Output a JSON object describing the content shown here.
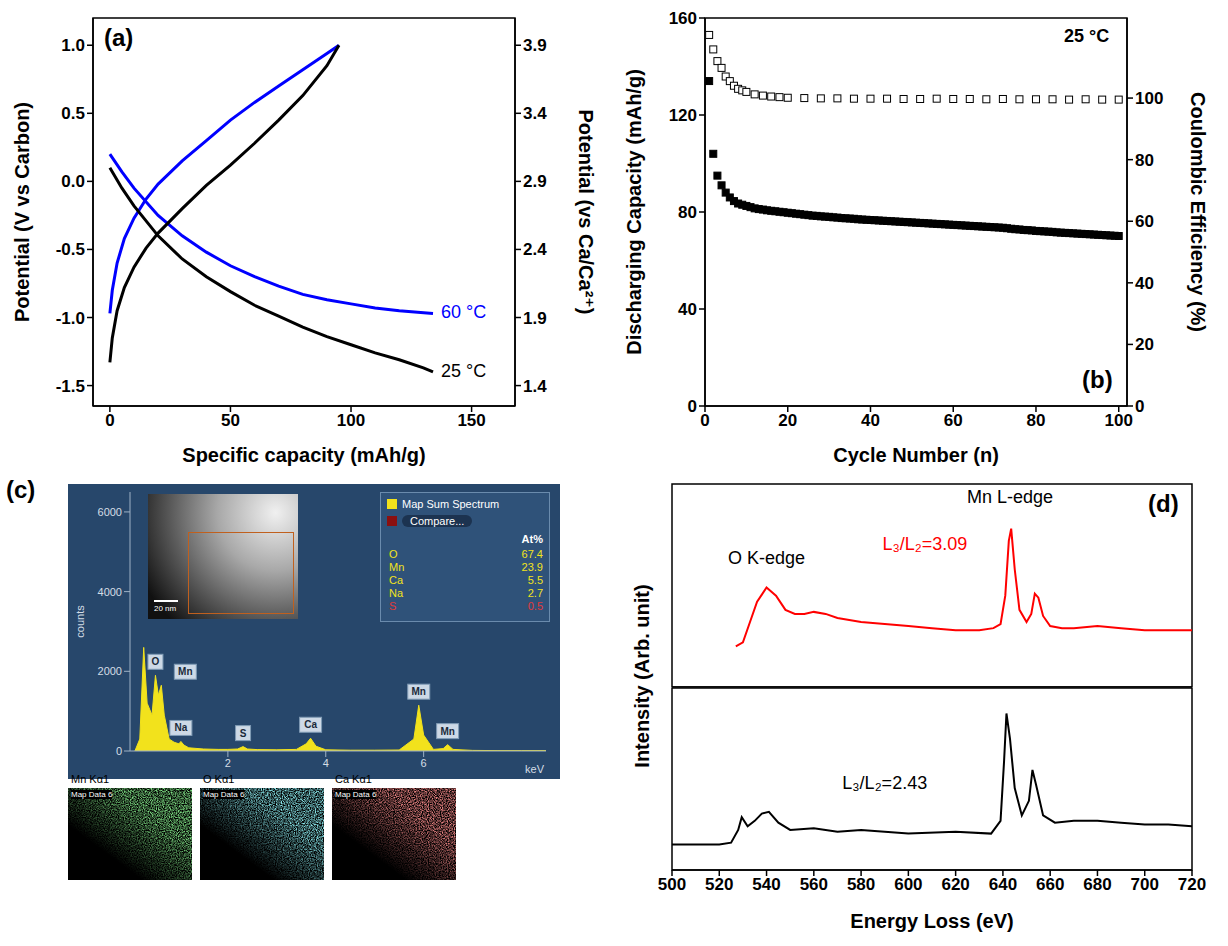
{
  "chart_data": [
    {
      "type": "line",
      "panel": "(a)",
      "xlabel": "Specific capacity (mAh/g)",
      "ylabel": "Potential (V vs Carbon)",
      "y2label": "Potential (vs Ca/Ca²⁺)",
      "xlim": [
        -7,
        168
      ],
      "xticks": [
        0,
        50,
        100,
        150
      ],
      "ylim": [
        -1.65,
        1.2
      ],
      "yticks": [
        {
          "value": -1.5,
          "label": "-1.5"
        },
        {
          "value": -1,
          "label": "-1.0"
        },
        {
          "value": -0.5,
          "label": "-0.5"
        },
        {
          "value": 0,
          "label": "0.0"
        },
        {
          "value": 0.5,
          "label": "0.5"
        },
        {
          "value": 1,
          "label": "1.0"
        }
      ],
      "y2lim": [
        1.25,
        4.1
      ],
      "y2ticks": [
        1.4,
        1.9,
        2.4,
        2.9,
        3.4,
        3.9
      ],
      "series": [
        {
          "name": "60 °C",
          "color": "#0000ff",
          "curves": [
            {
              "x": [
                0,
                1,
                3,
                6,
                10,
                15,
                20,
                30,
                40,
                50,
                60,
                70,
                80,
                90,
                95
              ],
              "values": [
                -0.97,
                -0.8,
                -0.6,
                -0.42,
                -0.27,
                -0.13,
                -0.02,
                0.15,
                0.3,
                0.45,
                0.58,
                0.7,
                0.82,
                0.94,
                1.0
              ]
            },
            {
              "x": [
                0,
                5,
                10,
                20,
                30,
                40,
                50,
                60,
                70,
                80,
                90,
                100,
                110,
                120,
                134
              ],
              "values": [
                0.2,
                0.07,
                -0.05,
                -0.25,
                -0.4,
                -0.52,
                -0.62,
                -0.7,
                -0.77,
                -0.83,
                -0.87,
                -0.9,
                -0.93,
                -0.95,
                -0.97
              ]
            }
          ]
        },
        {
          "name": "25 °C",
          "color": "#000000",
          "curves": [
            {
              "x": [
                0,
                1,
                3,
                6,
                10,
                15,
                20,
                30,
                40,
                50,
                60,
                70,
                80,
                90,
                95
              ],
              "values": [
                -1.33,
                -1.15,
                -0.95,
                -0.78,
                -0.63,
                -0.49,
                -0.38,
                -0.2,
                -0.03,
                0.12,
                0.28,
                0.45,
                0.63,
                0.85,
                1.0
              ]
            },
            {
              "x": [
                0,
                5,
                10,
                20,
                30,
                40,
                50,
                60,
                70,
                80,
                90,
                100,
                110,
                120,
                130,
                134
              ],
              "values": [
                0.1,
                -0.05,
                -0.18,
                -0.4,
                -0.57,
                -0.7,
                -0.81,
                -0.91,
                -0.99,
                -1.07,
                -1.14,
                -1.2,
                -1.26,
                -1.31,
                -1.37,
                -1.4
              ]
            }
          ]
        }
      ]
    },
    {
      "type": "scatter",
      "panel": "(b)",
      "xlabel": "Cycle Number (n)",
      "ylabel": "Discharging Capacity (mAh/g)",
      "y2label": "Coulombic Efficiency (%)",
      "annotations": [
        {
          "text": "25 °C"
        }
      ],
      "xlim": [
        0,
        102
      ],
      "xticks": [
        0,
        20,
        40,
        60,
        80,
        100
      ],
      "ylim": [
        0,
        160
      ],
      "yticks": [
        0,
        40,
        80,
        120,
        160
      ],
      "y2lim": [
        0,
        126
      ],
      "y2ticks": [
        0,
        20,
        40,
        60,
        80,
        100
      ],
      "series": [
        {
          "color": "#000000",
          "marker": "filled square",
          "line_style": "none",
          "x": [
            1,
            2,
            3,
            4,
            5,
            6,
            7,
            8,
            9,
            10,
            11,
            12,
            13,
            14,
            15,
            16,
            17,
            18,
            19,
            20,
            21,
            22,
            23,
            24,
            25,
            26,
            27,
            28,
            29,
            30,
            31,
            32,
            33,
            34,
            35,
            36,
            37,
            38,
            39,
            40,
            41,
            42,
            43,
            44,
            45,
            46,
            47,
            48,
            49,
            50,
            51,
            52,
            53,
            54,
            55,
            56,
            57,
            58,
            59,
            60,
            61,
            62,
            63,
            64,
            65,
            66,
            67,
            68,
            69,
            70,
            71,
            72,
            73,
            74,
            75,
            76,
            77,
            78,
            79,
            80,
            81,
            82,
            83,
            84,
            85,
            86,
            87,
            88,
            89,
            90,
            91,
            92,
            93,
            94,
            95,
            96,
            97,
            98,
            99,
            100
          ],
          "values": [
            134,
            104,
            95,
            91,
            88,
            86,
            84.5,
            83.5,
            83,
            82.5,
            82,
            81.5,
            81.2,
            81,
            80.7,
            80.5,
            80.3,
            80.1,
            79.9,
            79.7,
            79.5,
            79.3,
            79.1,
            78.9,
            78.7,
            78.5,
            78.4,
            78.2,
            78.1,
            78,
            77.8,
            77.7,
            77.5,
            77.4,
            77.3,
            77.2,
            77,
            76.9,
            76.8,
            76.7,
            76.6,
            76.5,
            76.4,
            76.3,
            76.2,
            76.1,
            76,
            75.9,
            75.8,
            75.7,
            75.6,
            75.5,
            75.4,
            75.3,
            75.2,
            75.1,
            75,
            74.9,
            74.8,
            74.7,
            74.6,
            74.5,
            74.4,
            74.3,
            74.2,
            74.1,
            74,
            73.9,
            73.8,
            73.7,
            73.6,
            73.5,
            73.3,
            73.1,
            72.9,
            72.8,
            72.6,
            72.5,
            72.4,
            72.2,
            72.1,
            72,
            71.9,
            71.8,
            71.6,
            71.5,
            71.4,
            71.3,
            71.2,
            71.1,
            71,
            70.9,
            70.8,
            70.7,
            70.6,
            70.5,
            70.4,
            70.3,
            70.2,
            70.1
          ]
        },
        {
          "color": "#000000",
          "marker": "open square",
          "line_style": "none",
          "axis": "y2",
          "x": [
            1,
            2,
            3,
            4,
            5,
            6,
            7,
            8,
            9,
            10,
            12,
            14,
            16,
            18,
            20,
            24,
            28,
            32,
            36,
            40,
            44,
            48,
            52,
            56,
            60,
            64,
            68,
            72,
            76,
            80,
            84,
            88,
            92,
            96,
            100
          ],
          "values": [
            120.5,
            115.8,
            112,
            109.8,
            107,
            105.5,
            104,
            103,
            102.5,
            102,
            101.2,
            100.8,
            100.5,
            100.3,
            100.1,
            100,
            99.9,
            99.9,
            99.8,
            99.8,
            99.8,
            99.7,
            99.7,
            99.8,
            99.7,
            99.7,
            99.6,
            99.7,
            99.6,
            99.6,
            99.6,
            99.5,
            99.6,
            99.5,
            99.5
          ]
        }
      ]
    },
    {
      "type": "area",
      "panel": "(c)",
      "xlabel": "keV",
      "ylabel": "counts",
      "color": "#f2e21c",
      "xlim": [
        0,
        8.5
      ],
      "xticks": [
        2,
        4,
        6
      ],
      "ylim": [
        0,
        6500
      ],
      "yticks": [
        0,
        2000,
        4000,
        6000
      ],
      "x": [
        0.1,
        0.2,
        0.28,
        0.35,
        0.45,
        0.52,
        0.58,
        0.64,
        0.7,
        0.8,
        0.9,
        1.0,
        1.04,
        1.1,
        1.2,
        1.5,
        1.8,
        2.0,
        2.2,
        2.31,
        2.4,
        2.6,
        3.0,
        3.4,
        3.6,
        3.69,
        3.8,
        4.0,
        4.5,
        5.0,
        5.5,
        5.8,
        5.9,
        6.0,
        6.2,
        6.4,
        6.49,
        6.6,
        7.0,
        7.5,
        8.0,
        8.5
      ],
      "values": [
        0,
        300,
        2600,
        1200,
        900,
        1900,
        1400,
        1650,
        900,
        300,
        220,
        180,
        240,
        150,
        80,
        50,
        40,
        40,
        50,
        110,
        50,
        35,
        30,
        40,
        180,
        320,
        120,
        30,
        20,
        20,
        25,
        300,
        1150,
        400,
        40,
        60,
        160,
        40,
        15,
        10,
        10,
        10
      ],
      "peak_labels": [
        {
          "label": "O",
          "x": 0.52
        },
        {
          "label": "Mn",
          "x": 0.64
        },
        {
          "label": "Na",
          "x": 1.04
        },
        {
          "label": "S",
          "x": 2.31
        },
        {
          "label": "Ca",
          "x": 3.69
        },
        {
          "label": "Mn",
          "x": 5.9
        },
        {
          "label": "Mn",
          "x": 6.49
        }
      ],
      "screenshot": {
        "legend_entry": "Map Sum Spectrum",
        "dropdown": "Compare...",
        "table_header": "At%",
        "image_scale": "20 nm",
        "table": [
          {
            "element": "O",
            "value": 67.4,
            "color": "#f2e21c"
          },
          {
            "element": "Mn",
            "value": 23.9,
            "color": "#f2e21c"
          },
          {
            "element": "Ca",
            "value": 5.5,
            "color": "#f2e21c"
          },
          {
            "element": "Na",
            "value": 2.7,
            "color": "#f2e21c"
          },
          {
            "element": "S",
            "value": 0.5,
            "color": "#e03a3a"
          }
        ],
        "maps": [
          {
            "title": "Map Data 6",
            "label": "Mn Kα1",
            "color": "#36c03c"
          },
          {
            "title": "Map Data 6",
            "label": "O Kα1",
            "color": "#3fc9d2"
          },
          {
            "title": "Map Data 6",
            "label": "Ca Kα1",
            "color": "#d23a3a"
          }
        ]
      }
    },
    {
      "type": "line",
      "panel": "(d)",
      "ylabel": "Intensity (Arb. unit)",
      "tick_labels": false,
      "color": "#ff0000",
      "xlim": [
        500,
        720
      ],
      "xticks": [
        500,
        520,
        540,
        560,
        580,
        600,
        620,
        640,
        660,
        680,
        700,
        720
      ],
      "ylim": [
        0,
        1
      ],
      "x": [
        527,
        530,
        533,
        536,
        540,
        544,
        548,
        552,
        556,
        560,
        565,
        570,
        580,
        590,
        600,
        610,
        620,
        630,
        636,
        639,
        641,
        642.5,
        643.5,
        645,
        647,
        650,
        652,
        653.5,
        655,
        657,
        660,
        665,
        670,
        680,
        690,
        700,
        710,
        720
      ],
      "values": [
        0.2,
        0.22,
        0.32,
        0.42,
        0.49,
        0.45,
        0.38,
        0.36,
        0.36,
        0.37,
        0.36,
        0.34,
        0.32,
        0.31,
        0.3,
        0.29,
        0.28,
        0.28,
        0.29,
        0.31,
        0.45,
        0.72,
        0.78,
        0.58,
        0.38,
        0.32,
        0.36,
        0.46,
        0.44,
        0.35,
        0.3,
        0.29,
        0.29,
        0.3,
        0.29,
        0.28,
        0.28,
        0.28
      ],
      "annotations": [
        {
          "text": "O K-edge",
          "x": 540,
          "y": 0.63,
          "color": "#000000"
        },
        {
          "text": "Mn L-edge",
          "x": 643,
          "y": 0.93,
          "color": "#000000"
        },
        {
          "text": "L₃/L₂=3.09",
          "x": 607,
          "y": 0.7,
          "color": "#ff0000"
        }
      ]
    },
    {
      "type": "line",
      "xlabel": "Energy Loss (eV)",
      "tick_labels": "x",
      "color": "#000000",
      "xlim": [
        500,
        720
      ],
      "xticks": [
        500,
        520,
        540,
        560,
        580,
        600,
        620,
        640,
        660,
        680,
        700,
        720
      ],
      "ylim": [
        0,
        1
      ],
      "x": [
        500,
        510,
        520,
        525,
        528,
        529.5,
        532,
        535,
        538,
        541,
        545,
        550,
        560,
        570,
        580,
        600,
        620,
        635,
        639,
        640.5,
        641.5,
        643,
        645,
        648,
        651,
        652.5,
        654,
        657,
        662,
        670,
        680,
        690,
        700,
        710,
        720
      ],
      "values": [
        0.14,
        0.14,
        0.14,
        0.15,
        0.22,
        0.29,
        0.24,
        0.27,
        0.31,
        0.32,
        0.26,
        0.22,
        0.23,
        0.21,
        0.22,
        0.2,
        0.21,
        0.2,
        0.27,
        0.6,
        0.86,
        0.72,
        0.45,
        0.3,
        0.38,
        0.55,
        0.47,
        0.3,
        0.26,
        0.27,
        0.27,
        0.26,
        0.25,
        0.25,
        0.24
      ],
      "annotations": [
        {
          "text": "L₃/L₂=2.43",
          "x": 590,
          "y": 0.47,
          "color": "#000000"
        }
      ]
    }
  ]
}
